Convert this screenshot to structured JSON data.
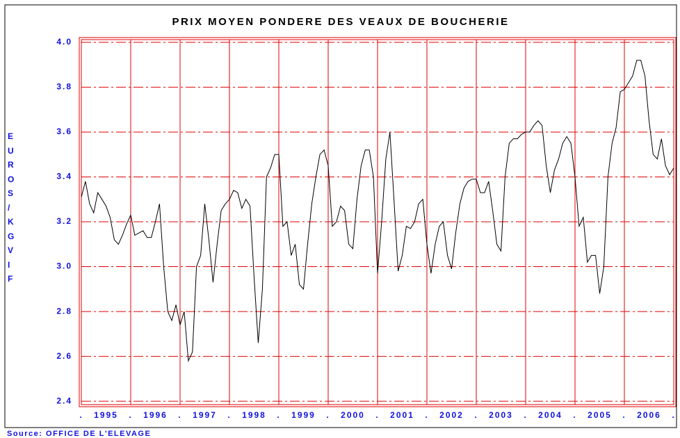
{
  "chart_data": {
    "type": "line",
    "title": "PRIX MOYEN PONDERE DES VEAUX DE BOUCHERIE",
    "y_label": "EUROS/KG VIF",
    "source": "Source: OFFICE DE L'ELEVAGE",
    "categories": [
      "1995",
      "1996",
      "1997",
      "1998",
      "1999",
      "2000",
      "2001",
      "2002",
      "2003",
      "2004",
      "2005",
      "2006"
    ],
    "xlim": [
      1995,
      2007
    ],
    "xticks": [
      1995,
      1996,
      1997,
      1998,
      1999,
      2000,
      2001,
      2002,
      2003,
      2004,
      2005,
      2006,
      2007
    ],
    "ylim": [
      2.385,
      4.012
    ],
    "yticks": [
      {
        "value": 2.4,
        "label": "2.4"
      },
      2.6,
      2.8,
      {
        "value": 3,
        "label": "3.0"
      },
      3.2,
      3.4,
      3.6,
      3.8,
      {
        "value": 4,
        "label": "4.0"
      }
    ],
    "color": "#000000",
    "grid": true,
    "x": [
      1995,
      1995.083,
      1995.167,
      1995.25,
      1995.333,
      1995.417,
      1995.5,
      1995.583,
      1995.667,
      1995.75,
      1995.833,
      1995.917,
      1996,
      1996.083,
      1996.167,
      1996.25,
      1996.333,
      1996.417,
      1996.5,
      1996.583,
      1996.667,
      1996.75,
      1996.833,
      1996.917,
      1997,
      1997.083,
      1997.167,
      1997.25,
      1997.333,
      1997.417,
      1997.5,
      1997.583,
      1997.667,
      1997.75,
      1997.833,
      1997.917,
      1998,
      1998.083,
      1998.167,
      1998.25,
      1998.333,
      1998.417,
      1998.5,
      1998.583,
      1998.667,
      1998.75,
      1998.833,
      1998.917,
      1999,
      1999.083,
      1999.167,
      1999.25,
      1999.333,
      1999.417,
      1999.5,
      1999.583,
      1999.667,
      1999.75,
      1999.833,
      1999.917,
      2000,
      2000.083,
      2000.167,
      2000.25,
      2000.333,
      2000.417,
      2000.5,
      2000.583,
      2000.667,
      2000.75,
      2000.833,
      2000.917,
      2001,
      2001.083,
      2001.167,
      2001.25,
      2001.333,
      2001.417,
      2001.5,
      2001.583,
      2001.667,
      2001.75,
      2001.833,
      2001.917,
      2002,
      2002.083,
      2002.167,
      2002.25,
      2002.333,
      2002.417,
      2002.5,
      2002.583,
      2002.667,
      2002.75,
      2002.833,
      2002.917,
      2003,
      2003.083,
      2003.167,
      2003.25,
      2003.333,
      2003.417,
      2003.5,
      2003.583,
      2003.667,
      2003.75,
      2003.833,
      2003.917,
      2004,
      2004.083,
      2004.167,
      2004.25,
      2004.333,
      2004.417,
      2004.5,
      2004.583,
      2004.667,
      2004.75,
      2004.833,
      2004.917,
      2005,
      2005.083,
      2005.167,
      2005.25,
      2005.333,
      2005.417,
      2005.5,
      2005.583,
      2005.667,
      2005.75,
      2005.833,
      2005.917,
      2006,
      2006.083,
      2006.167,
      2006.25,
      2006.333,
      2006.417,
      2006.5,
      2006.583,
      2006.667,
      2006.75,
      2006.833,
      2006.917,
      2007
    ],
    "values": [
      3.31,
      3.38,
      3.28,
      3.24,
      3.33,
      3.3,
      3.27,
      3.22,
      3.12,
      3.1,
      3.14,
      3.19,
      3.23,
      3.14,
      3.15,
      3.16,
      3.13,
      3.13,
      3.2,
      3.28,
      3.0,
      2.8,
      2.76,
      2.83,
      2.74,
      2.8,
      2.58,
      2.62,
      3.0,
      3.05,
      3.28,
      3.12,
      2.93,
      3.1,
      3.25,
      3.28,
      3.3,
      3.34,
      3.33,
      3.26,
      3.3,
      3.27,
      2.95,
      2.66,
      2.9,
      3.4,
      3.44,
      3.5,
      3.5,
      3.18,
      3.2,
      3.05,
      3.1,
      2.92,
      2.9,
      3.1,
      3.28,
      3.4,
      3.5,
      3.52,
      3.45,
      3.18,
      3.2,
      3.27,
      3.25,
      3.1,
      3.08,
      3.3,
      3.45,
      3.52,
      3.52,
      3.4,
      2.97,
      3.2,
      3.48,
      3.6,
      3.3,
      2.98,
      3.05,
      3.18,
      3.17,
      3.2,
      3.28,
      3.3,
      3.1,
      2.97,
      3.1,
      3.18,
      3.2,
      3.05,
      2.99,
      3.15,
      3.28,
      3.35,
      3.38,
      3.39,
      3.39,
      3.33,
      3.33,
      3.38,
      3.25,
      3.1,
      3.07,
      3.4,
      3.55,
      3.57,
      3.57,
      3.59,
      3.6,
      3.6,
      3.63,
      3.65,
      3.63,
      3.45,
      3.33,
      3.43,
      3.48,
      3.55,
      3.58,
      3.55,
      3.4,
      3.18,
      3.22,
      3.02,
      3.05,
      3.05,
      2.88,
      3.0,
      3.4,
      3.55,
      3.62,
      3.78,
      3.79,
      3.82,
      3.85,
      3.92,
      3.92,
      3.85,
      3.65,
      3.5,
      3.48,
      3.57,
      3.45,
      3.41,
      3.44
    ]
  }
}
